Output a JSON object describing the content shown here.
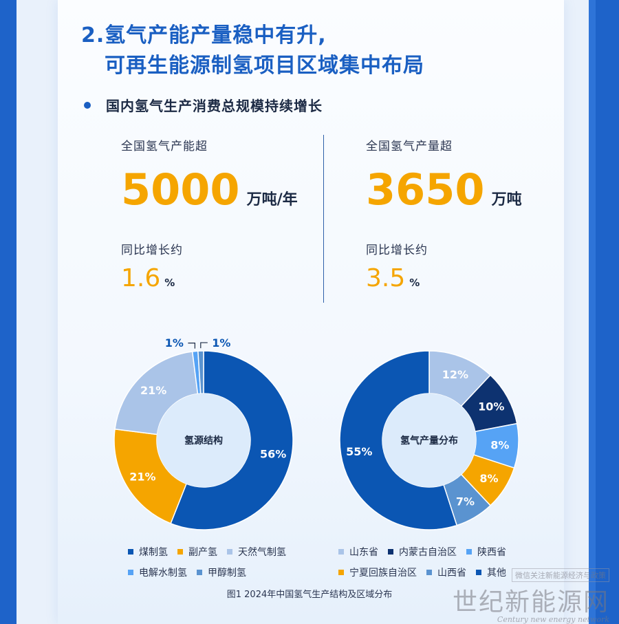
{
  "section": {
    "title_line1": "2.氢气产能产量稳中有升,",
    "title_line2": "可再生能源制氢项目区域集中布局",
    "bullet": "国内氢气生产消费总规模持续增长"
  },
  "stats": {
    "capacity": {
      "label": "全国氢气产能超",
      "value": "5000",
      "unit": "万吨/年",
      "yoy_label": "同比增长约",
      "yoy_value": "1.6",
      "yoy_unit": "%"
    },
    "output": {
      "label": "全国氢气产量超",
      "value": "3650",
      "unit": "万吨",
      "yoy_label": "同比增长约",
      "yoy_value": "3.5",
      "yoy_unit": "%"
    }
  },
  "chart_data": [
    {
      "type": "pie",
      "center_label": "氢源结构",
      "categories": [
        "煤制氢",
        "副产氢",
        "天然气制氢",
        "电解水制氢",
        "甲醇制氢"
      ],
      "values": [
        56,
        21,
        21,
        1,
        1
      ],
      "labels": [
        "56%",
        "21%",
        "21%",
        "1%",
        "1%"
      ],
      "colors": [
        "#0b56b3",
        "#f5a500",
        "#aac4e8",
        "#56a3f5",
        "#5a93d0"
      ],
      "legend_placement": "bottom"
    },
    {
      "type": "pie",
      "center_label": "氢气产量分布",
      "categories": [
        "山东省",
        "内蒙古自治区",
        "陕西省",
        "宁夏回族自治区",
        "山西省",
        "其他"
      ],
      "values": [
        12,
        10,
        8,
        8,
        7,
        55
      ],
      "labels": [
        "12%",
        "10%",
        "8%",
        "8%",
        "7%",
        "55%"
      ],
      "colors": [
        "#aac4e8",
        "#0d3270",
        "#56a3f5",
        "#f5a500",
        "#5a93d0",
        "#0b56b3"
      ],
      "legend_placement": "bottom"
    }
  ],
  "caption": "图1 2024年中国氢气生产结构及区域分布",
  "watermark": {
    "main": "世纪新能源网",
    "english": "Century new energy network",
    "top": "微信关注新能源经济与政策"
  }
}
